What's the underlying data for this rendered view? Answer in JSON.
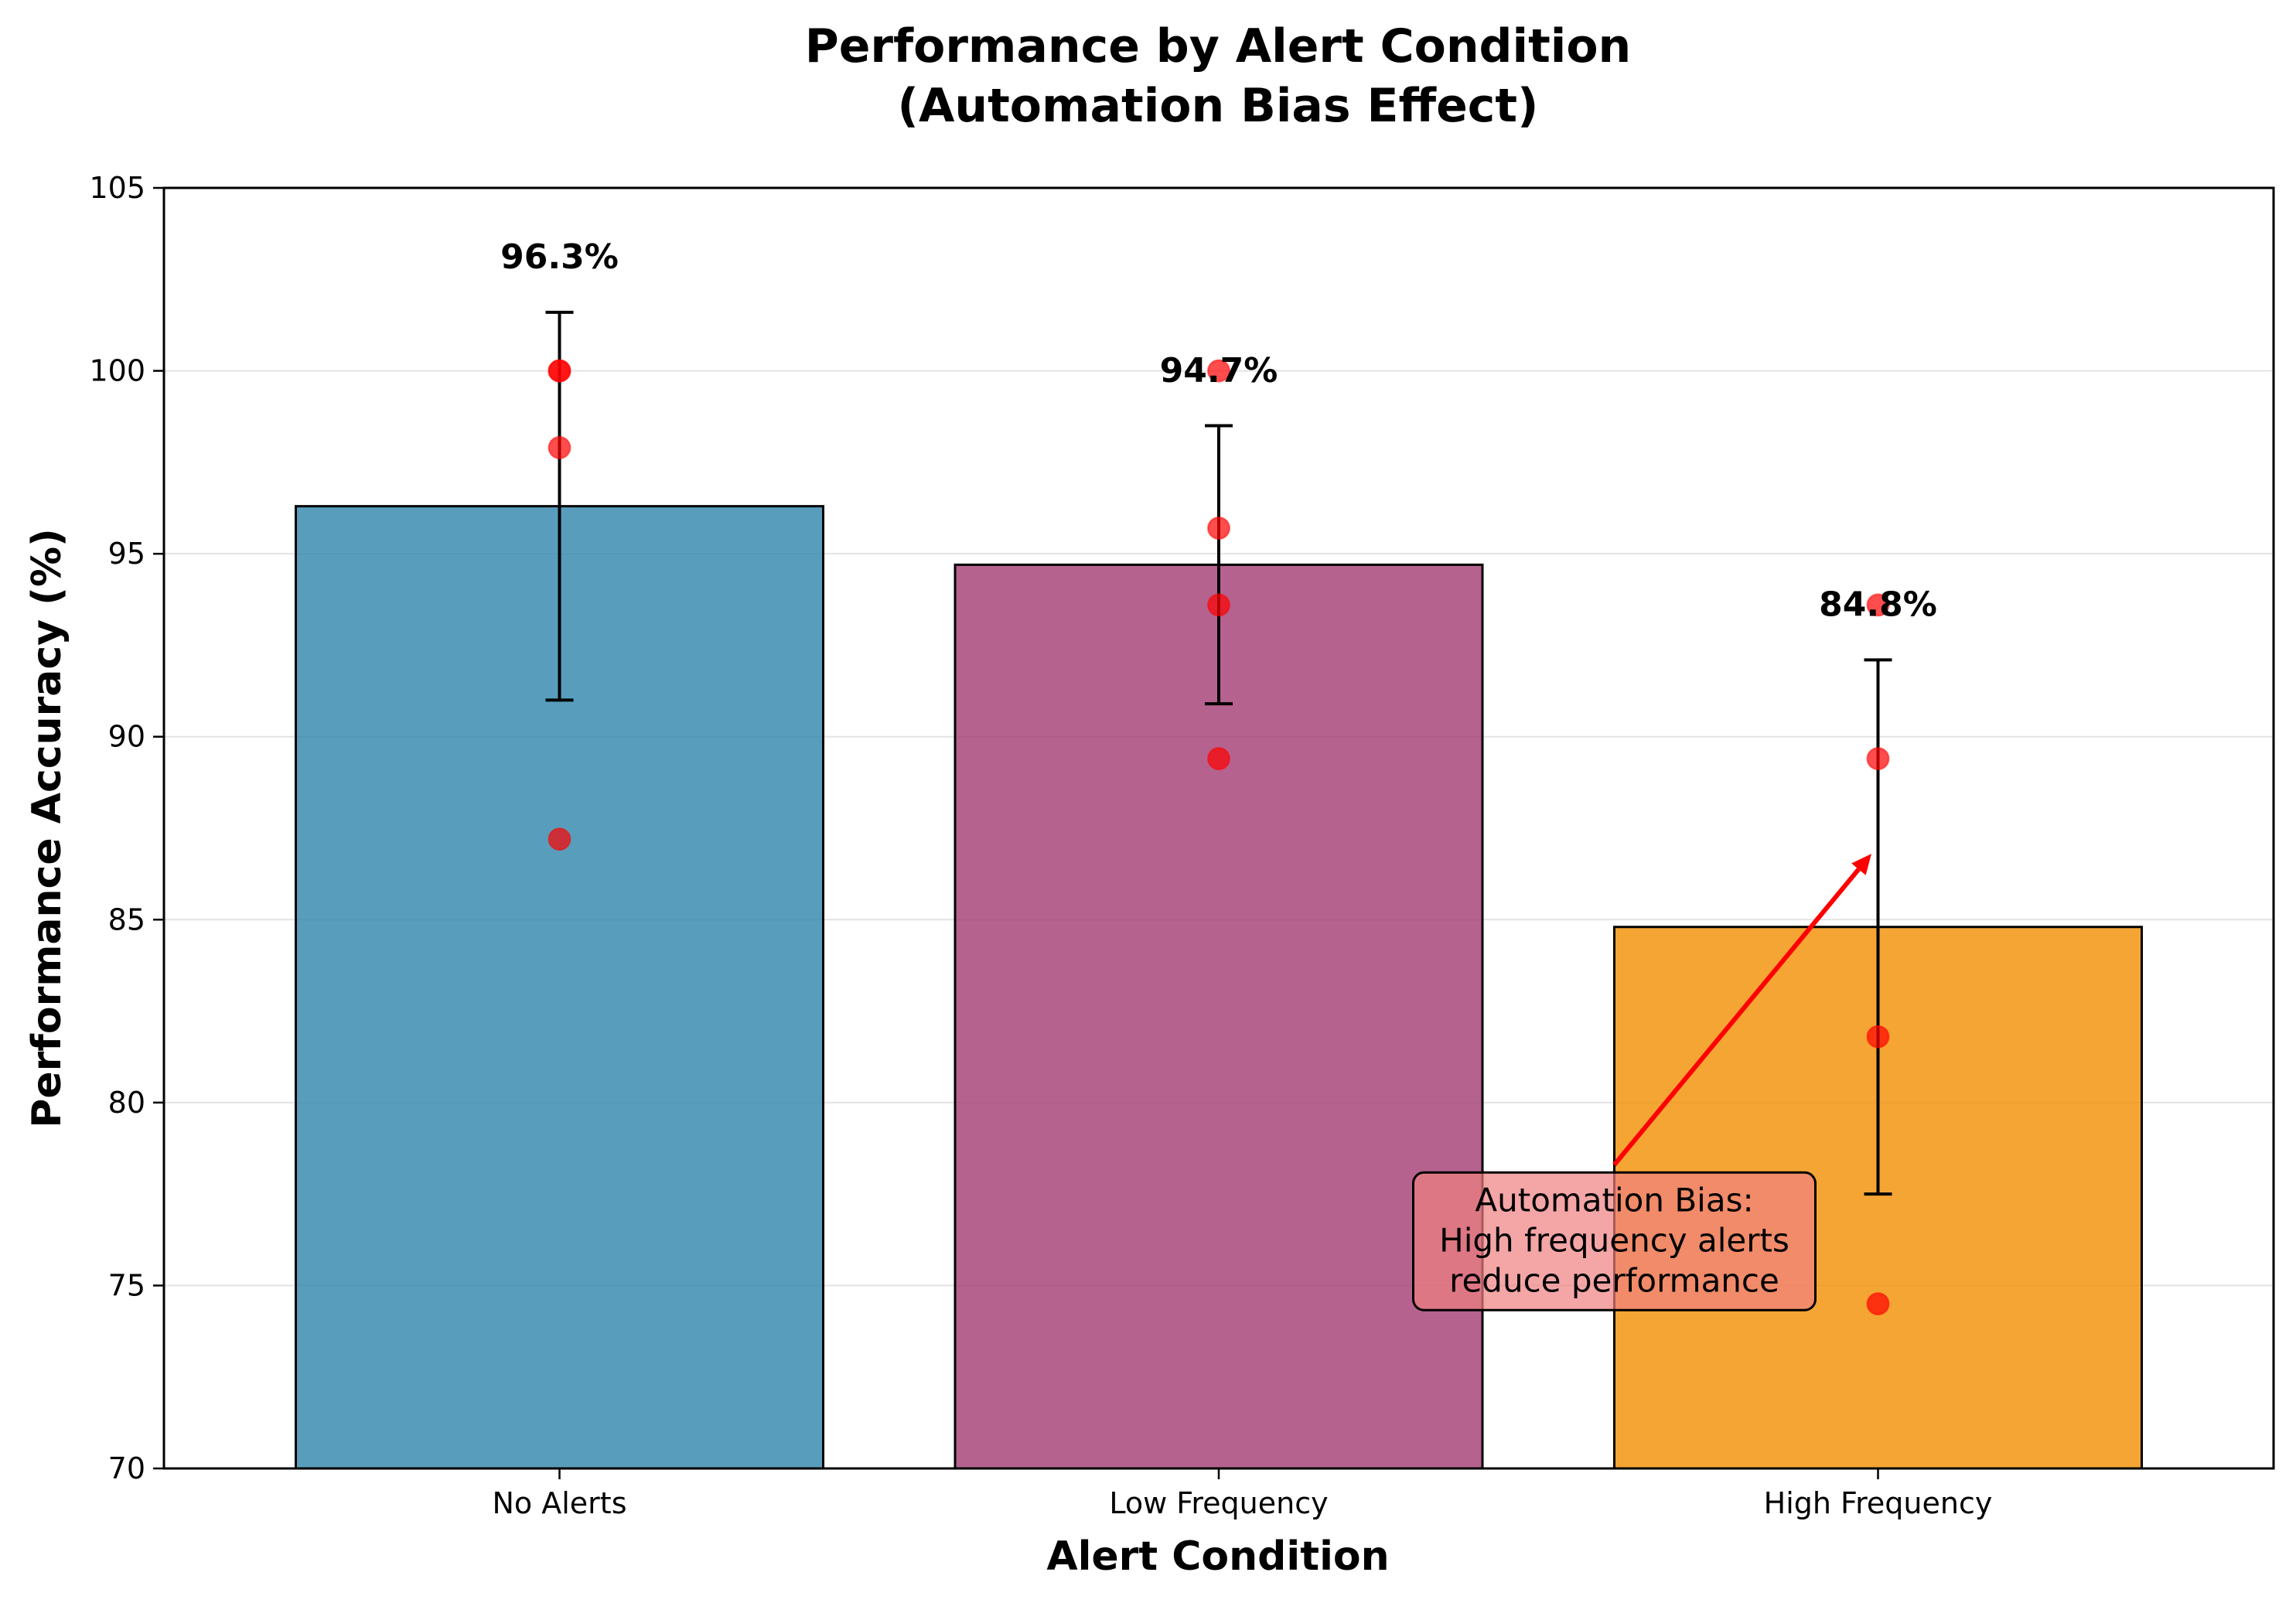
{
  "chart_data": {
    "type": "bar",
    "title": "Performance by Alert Condition",
    "subtitle": "(Automation Bias Effect)",
    "xlabel": "Alert Condition",
    "ylabel": "Performance Accuracy (%)",
    "ylim": [
      70,
      105
    ],
    "yticks": [
      70,
      75,
      80,
      85,
      90,
      95,
      100,
      105
    ],
    "grid": "horizontal",
    "categories": [
      "No Alerts",
      "Low Frequency",
      "High Frequency"
    ],
    "values": [
      96.3,
      94.7,
      84.8
    ],
    "value_labels": [
      "96.3%",
      "94.7%",
      "84.8%"
    ],
    "error": [
      5.3,
      3.8,
      7.3
    ],
    "colors": [
      "#2E86AB",
      "#A23B72",
      "#F18F01"
    ],
    "points_color": "#FF0000",
    "points": [
      [
        100.0,
        100.0,
        97.9,
        87.2
      ],
      [
        100.0,
        95.7,
        93.6,
        89.4
      ],
      [
        93.6,
        89.4,
        81.8,
        74.5
      ]
    ],
    "annotation": {
      "lines": [
        "Automation Bias:",
        "High frequency alerts",
        "reduce performance"
      ],
      "box_color": "#F08080",
      "arrow_color": "#FF0000",
      "text_anchor": {
        "category_index": 1.6,
        "value": 78.3
      },
      "arrow_target": {
        "category_index": 1.99,
        "value": 86.8
      }
    }
  }
}
